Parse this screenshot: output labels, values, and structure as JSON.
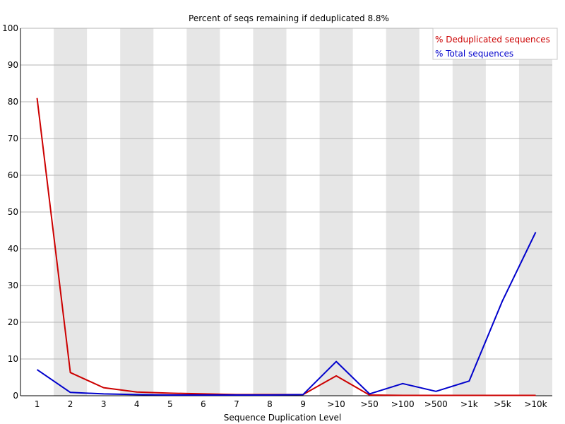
{
  "chart_data": {
    "type": "line",
    "title": "Percent of seqs remaining if deduplicated 8.8%",
    "xlabel": "Sequence Duplication Level",
    "ylabel": "",
    "ylim": [
      0,
      100
    ],
    "yticks": [
      0,
      10,
      20,
      30,
      40,
      50,
      60,
      70,
      80,
      90,
      100
    ],
    "categories": [
      "1",
      "2",
      "3",
      "4",
      "5",
      "6",
      "7",
      "8",
      "9",
      ">10",
      ">50",
      ">100",
      ">500",
      ">1k",
      ">5k",
      ">10k"
    ],
    "grid": true,
    "legend_position": "top-right",
    "series": [
      {
        "name": "% Deduplicated sequences",
        "color": "#cc0000",
        "values": [
          81.0,
          6.3,
          2.2,
          1.0,
          0.7,
          0.5,
          0.3,
          0.3,
          0.3,
          5.4,
          0.2,
          0.1,
          0.1,
          0.1,
          0.1,
          0.1
        ]
      },
      {
        "name": "% Total sequences",
        "color": "#0000cc",
        "values": [
          7.1,
          0.9,
          0.5,
          0.3,
          0.2,
          0.2,
          0.2,
          0.2,
          0.3,
          9.3,
          0.5,
          3.3,
          1.2,
          4.0,
          25.8,
          44.5
        ]
      }
    ]
  }
}
